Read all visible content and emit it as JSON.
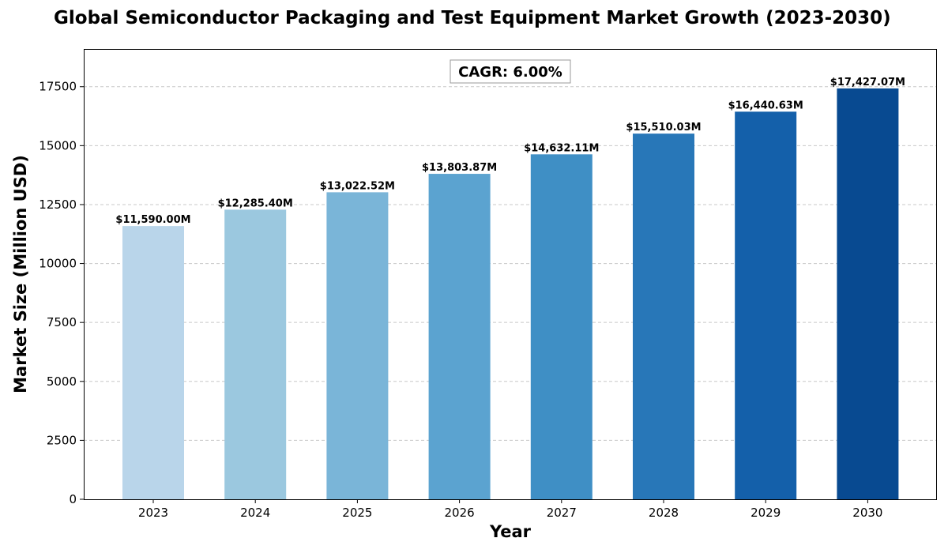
{
  "chart_data": {
    "type": "bar",
    "title": "Global Semiconductor Packaging and Test Equipment Market Growth (2023-2030)",
    "xlabel": "Year",
    "ylabel": "Market Size (Million USD)",
    "categories": [
      "2023",
      "2024",
      "2025",
      "2026",
      "2027",
      "2028",
      "2029",
      "2030"
    ],
    "values": [
      11590.0,
      12285.4,
      13022.52,
      13803.87,
      14632.11,
      15510.03,
      16440.63,
      17427.07
    ],
    "data_labels": [
      "$11,590.00M",
      "$12,285.40M",
      "$13,022.52M",
      "$13,803.87M",
      "$14,632.11M",
      "$15,510.03M",
      "$16,440.63M",
      "$17,427.07M"
    ],
    "ylim": [
      0,
      19100
    ],
    "yticks": [
      0,
      2500,
      5000,
      7500,
      10000,
      12500,
      15000,
      17500
    ],
    "grid": true,
    "annotation": "CAGR: 6.00%",
    "bar_colors": [
      "#b9d5ea",
      "#9bc8df",
      "#7ab5d8",
      "#5ba3d0",
      "#3f8fc5",
      "#2877b8",
      "#1460aa",
      "#084a91"
    ]
  }
}
